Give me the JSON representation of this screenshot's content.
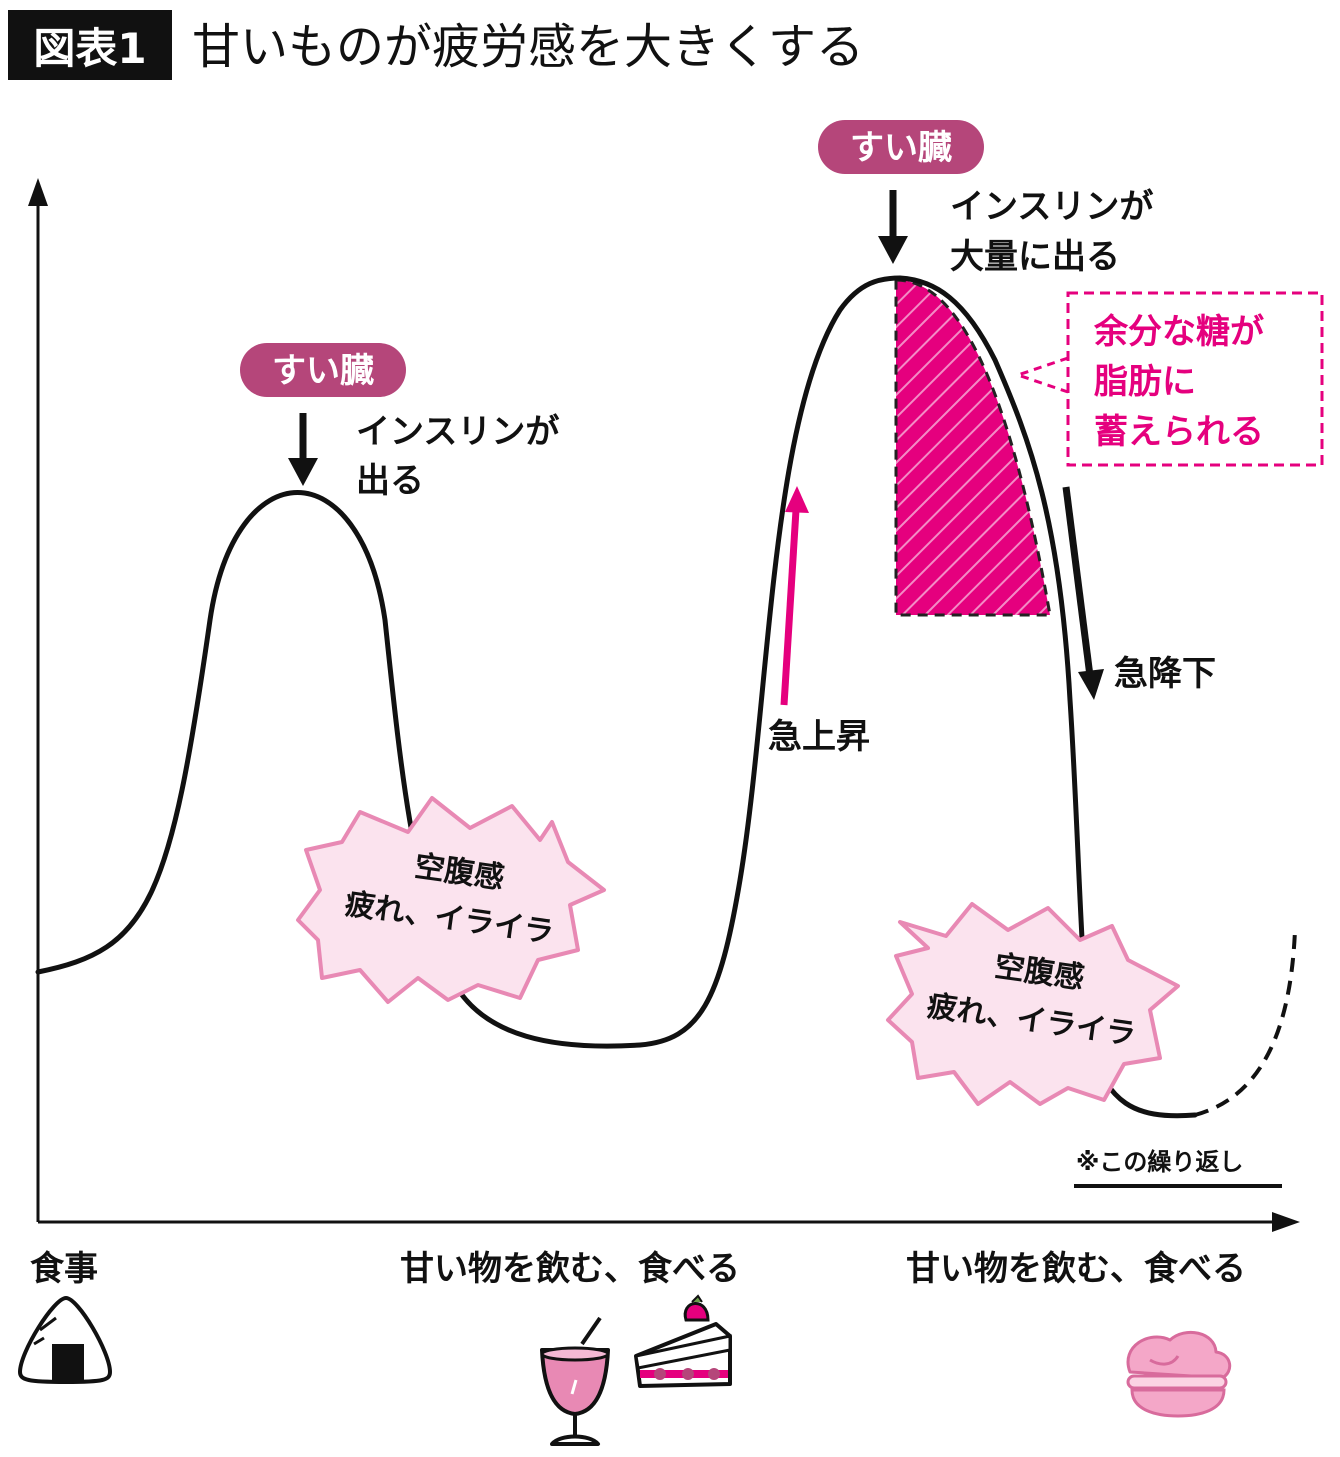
{
  "header": {
    "tag": "図表1",
    "title": "甘いものが疲労感を大きくする"
  },
  "colors": {
    "pink": "#e5007e",
    "plum": "#b5467a",
    "burst_fill": "#fbe3ee",
    "burst_stroke": "#e889b4",
    "ink": "#111111"
  },
  "peak1": {
    "badge": "すい臓",
    "line1": "インスリンが",
    "line2": "出る"
  },
  "peak2": {
    "badge": "すい臓",
    "line1": "インスリンが",
    "line2": "大量に出る"
  },
  "fat_box": {
    "line1": "余分な糖が",
    "line2": "脂肪に",
    "line3": "蓄えられる"
  },
  "rise_label": "急上昇",
  "fall_label": "急降下",
  "burst1": {
    "line1": "空腹感",
    "line2": "疲れ、イライラ"
  },
  "burst2": {
    "line1": "空腹感",
    "line2": "疲れ、イライラ"
  },
  "repeat_note": "※この繰り返し",
  "x_labels": {
    "meal": "食事",
    "sweet1": "甘い物を飲む、食べる",
    "sweet2": "甘い物を飲む、食べる"
  },
  "icons": [
    "onigiri-icon",
    "juice-glass-icon",
    "cake-slice-icon",
    "macaron-icon"
  ]
}
